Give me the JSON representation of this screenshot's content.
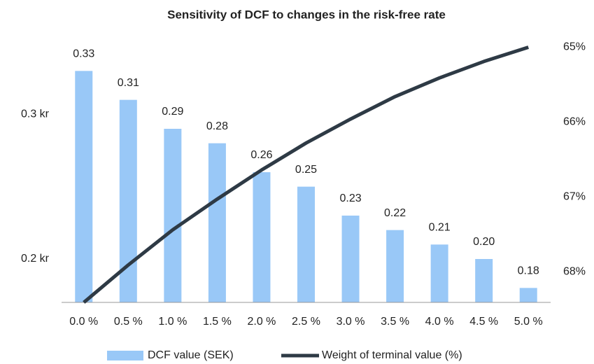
{
  "chart_data": {
    "type": "bar",
    "title": "Sensitivity of DCF to changes in the risk-free rate",
    "categories": [
      "0.0 %",
      "0.5 %",
      "1.0 %",
      "1.5 %",
      "2.0 %",
      "2.5 %",
      "3.0 %",
      "3.5 %",
      "4.0 %",
      "4.5 %",
      "5.0 %"
    ],
    "series": [
      {
        "name": "DCF value (SEK)",
        "type": "bar",
        "color": "#99c8f7",
        "values": [
          0.33,
          0.31,
          0.29,
          0.28,
          0.26,
          0.25,
          0.23,
          0.22,
          0.21,
          0.2,
          0.18
        ],
        "value_labels": [
          "0.33",
          "0.31",
          "0.29",
          "0.28",
          "0.26",
          "0.25",
          "0.23",
          "0.22",
          "0.21",
          "0.20",
          "0.18"
        ]
      },
      {
        "name": "Weight of terminal value (%)",
        "type": "line",
        "axis": "y2",
        "color": "#2e3a45",
        "values": [
          68.41,
          67.91,
          67.44,
          67.03,
          66.64,
          66.28,
          65.96,
          65.66,
          65.41,
          65.19,
          65.0
        ]
      }
    ],
    "ylim": [
      0.17,
      0.35
    ],
    "yticks": [
      {
        "value": 0.2,
        "label": "0.2 kr"
      },
      {
        "value": 0.3,
        "label": "0.3 kr"
      }
    ],
    "y2lim": [
      68.41,
      64.93
    ],
    "y2ticks": [
      {
        "value": 65,
        "label": "65%"
      },
      {
        "value": 66,
        "label": "66%"
      },
      {
        "value": 67,
        "label": "67%"
      },
      {
        "value": 68,
        "label": "68%"
      }
    ],
    "legend": "bottom"
  }
}
